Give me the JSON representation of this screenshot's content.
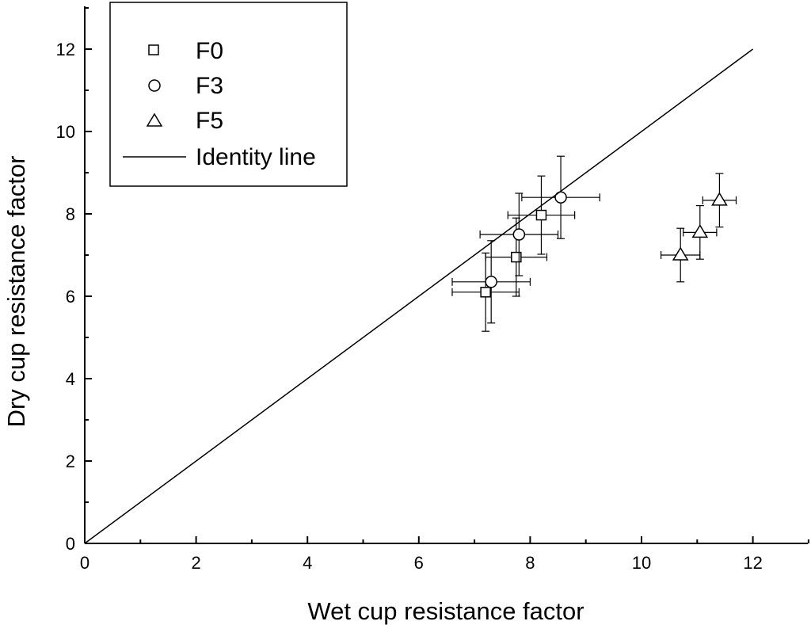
{
  "chart_data": {
    "type": "scatter",
    "xlabel": "Wet cup resistance factor",
    "ylabel": "Dry cup resistance factor",
    "xlim": [
      0,
      13
    ],
    "ylim": [
      0,
      13
    ],
    "xticks": [
      0,
      2,
      4,
      6,
      8,
      10,
      12
    ],
    "yticks": [
      0,
      2,
      4,
      6,
      8,
      10,
      12
    ],
    "grid": false,
    "legend_position": "top-left",
    "series": [
      {
        "name": "F0",
        "marker": "square",
        "points": [
          {
            "x": 7.2,
            "y": 6.1,
            "xerr": 0.6,
            "yerr": 0.95
          },
          {
            "x": 7.75,
            "y": 6.95,
            "xerr": 0.55,
            "yerr": 0.95
          },
          {
            "x": 8.2,
            "y": 7.97,
            "xerr": 0.6,
            "yerr": 0.95
          }
        ]
      },
      {
        "name": "F3",
        "marker": "circle",
        "points": [
          {
            "x": 7.3,
            "y": 6.35,
            "xerr": 0.7,
            "yerr": 1.0
          },
          {
            "x": 7.8,
            "y": 7.5,
            "xerr": 0.7,
            "yerr": 1.0
          },
          {
            "x": 8.55,
            "y": 8.4,
            "xerr": 0.7,
            "yerr": 1.0
          }
        ]
      },
      {
        "name": "F5",
        "marker": "triangle",
        "points": [
          {
            "x": 10.7,
            "y": 7.0,
            "xerr": 0.35,
            "yerr": 0.65
          },
          {
            "x": 11.05,
            "y": 7.55,
            "xerr": 0.3,
            "yerr": 0.65
          },
          {
            "x": 11.4,
            "y": 8.33,
            "xerr": 0.3,
            "yerr": 0.65
          }
        ]
      },
      {
        "name": "Identity line",
        "type": "line",
        "x": [
          0,
          12
        ],
        "y": [
          0,
          12
        ]
      }
    ]
  }
}
